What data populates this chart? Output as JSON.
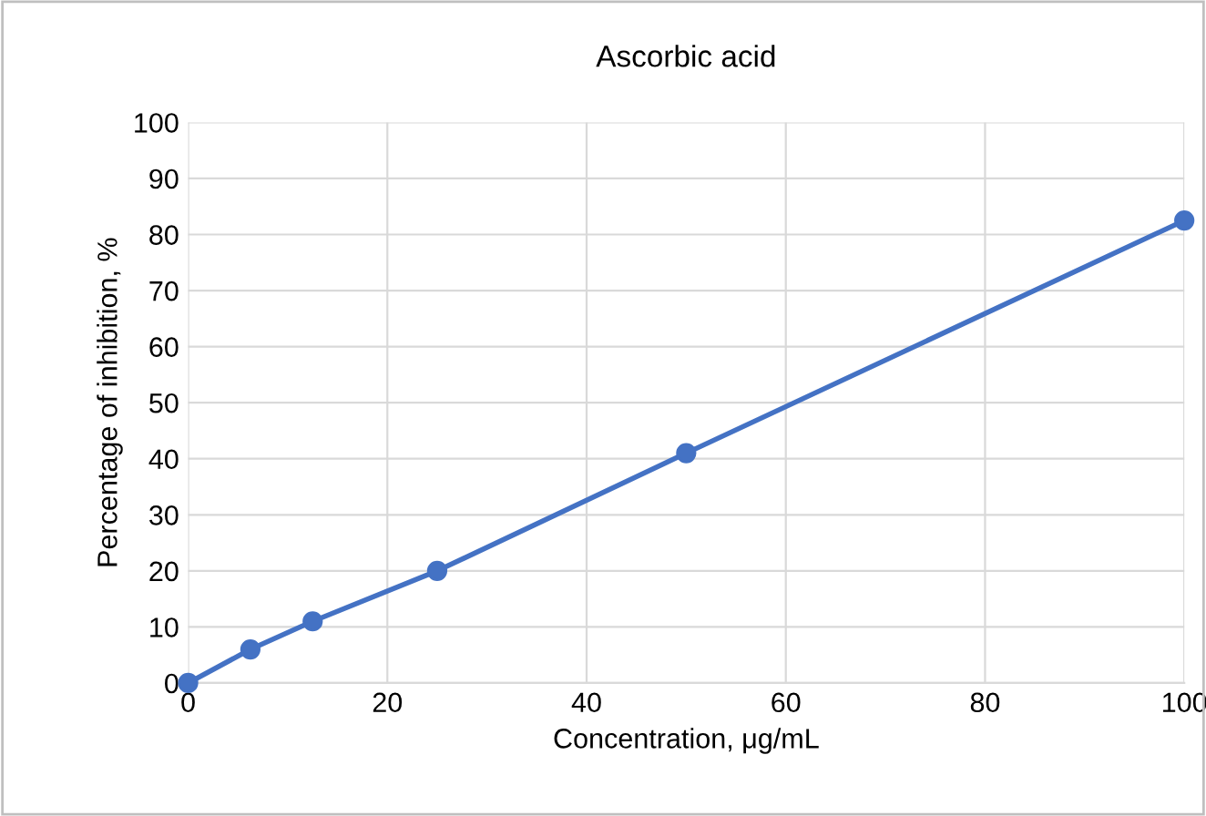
{
  "chart_data": {
    "type": "line",
    "title": "Ascorbic acid",
    "xlabel": "Concentration, μg/mL",
    "ylabel": "Percentage of inhibition, %",
    "x": [
      0,
      6.25,
      12.5,
      25,
      50,
      100
    ],
    "series": [
      {
        "color": "#4472c4",
        "values": [
          0,
          6,
          11,
          20,
          41,
          82.5
        ]
      }
    ],
    "xlim": [
      0,
      100
    ],
    "xticks": [
      0,
      20,
      40,
      60,
      80,
      100
    ],
    "ylim": [
      0,
      100
    ],
    "yticks": [
      0,
      10,
      20,
      30,
      40,
      50,
      60,
      70,
      80,
      90,
      100
    ],
    "grid": true,
    "marker": "circle",
    "line_style": "solid",
    "legend": false
  }
}
